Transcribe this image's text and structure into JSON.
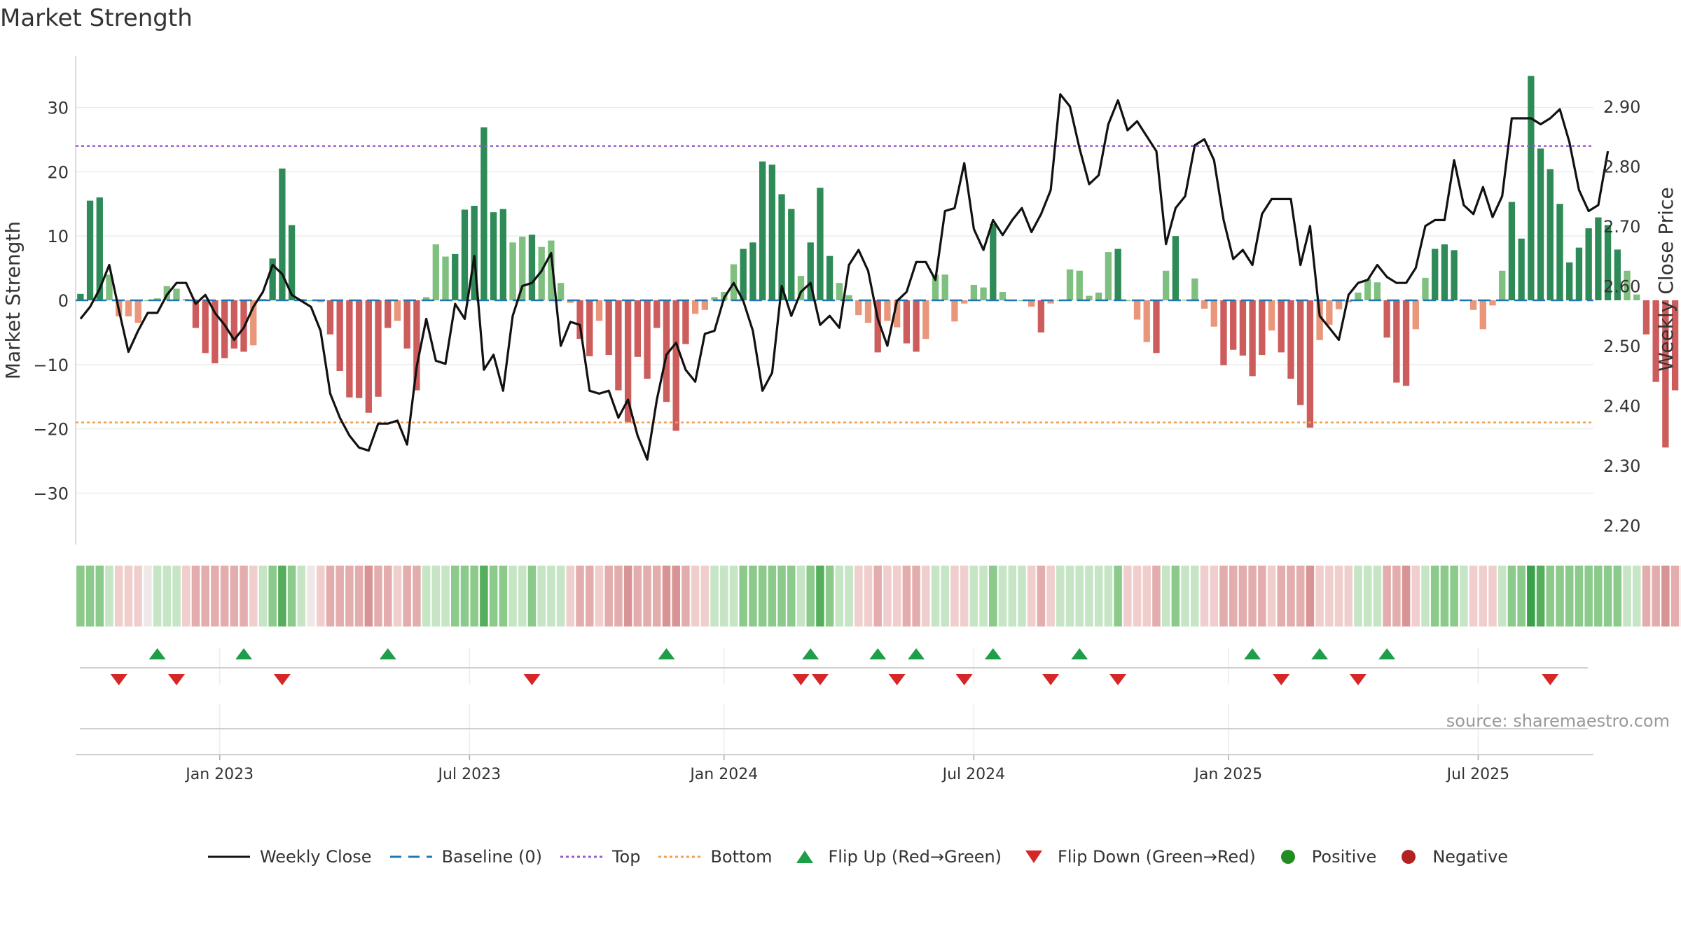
{
  "title": "Market Strength",
  "source": "source: sharemaestro.com",
  "colors": {
    "strong_green": "#2e8b57",
    "light_green": "#7fbf7f",
    "strong_red": "#cd5c5c",
    "light_red": "#e9967a",
    "price_line": "#111111",
    "baseline": "#1f77b4",
    "top": "#9b59d0",
    "bottom": "#f0a050",
    "flip_up": "#1e9e48",
    "flip_down": "#d62728",
    "positive": "#228b22",
    "negative": "#b22222"
  },
  "legend": {
    "weekly_close": "Weekly Close",
    "baseline": "Baseline (0)",
    "top": "Top",
    "bottom": "Bottom",
    "flip_up": "Flip Up (Red→Green)",
    "flip_down": "Flip Down (Green→Red)",
    "positive": "Positive",
    "negative": "Negative"
  },
  "chart_data": {
    "type": "bar",
    "title": "Market Strength",
    "ylabel": "Market Strength",
    "y2label": "Weekly Close Price",
    "ylim": [
      -38,
      38
    ],
    "y2lim": [
      2.168,
      2.984
    ],
    "yticks": [
      30,
      20,
      10,
      0,
      -10,
      -20,
      -30
    ],
    "ytick_labels": [
      "30",
      "20",
      "10",
      "0",
      "−10",
      "−20",
      "−30"
    ],
    "y2ticks": [
      2.9,
      2.8,
      2.7,
      2.6,
      2.5,
      2.4,
      2.3,
      2.2
    ],
    "y2tick_labels": [
      "2.90",
      "2.80",
      "2.70",
      "2.60",
      "2.50",
      "2.40",
      "2.30",
      "2.20"
    ],
    "xlim_weeks": [
      0,
      158
    ],
    "xticks": [
      {
        "label": "Jan 2023",
        "week": 15
      },
      {
        "label": "Jul 2023",
        "week": 41
      },
      {
        "label": "Jan 2024",
        "week": 67.5
      },
      {
        "label": "Jul 2024",
        "week": 93.5
      },
      {
        "label": "Jan 2025",
        "week": 120
      },
      {
        "label": "Jul 2025",
        "week": 146
      }
    ],
    "top_level": 24,
    "bottom_level": -19,
    "baseline": 0,
    "strength": [
      1,
      15.5,
      16,
      4,
      -2.5,
      -2.5,
      -3.5,
      0,
      0.3,
      2.2,
      1.8,
      0.2,
      -4.3,
      -8.2,
      -9.8,
      -9,
      -7.5,
      -8,
      -7,
      0.2,
      6.5,
      20.5,
      11.7,
      0.2,
      0,
      -0.3,
      -5.3,
      -11,
      -15.1,
      -15.2,
      -17.5,
      -15,
      -4.3,
      -3.2,
      -7.5,
      -14,
      0.5,
      8.7,
      6.8,
      7.2,
      14.1,
      14.7,
      26.9,
      13.7,
      14.2,
      9,
      9.9,
      10.2,
      8.3,
      9.3,
      2.7,
      -0.4,
      -6,
      -8.7,
      -3.2,
      -8.5,
      -14,
      -19,
      -8.8,
      -12.2,
      -4.3,
      -15.8,
      -20.3,
      -6.8,
      -2.1,
      -1.5,
      0.5,
      1.3,
      5.6,
      8,
      9,
      21.6,
      21.1,
      16.5,
      14.2,
      3.8,
      9,
      17.5,
      6.9,
      2.7,
      0.8,
      -2.3,
      -3.5,
      -8.1,
      -3.2,
      -4.2,
      -6.7,
      -8,
      -6,
      4,
      4,
      -3.3,
      -0.5,
      2.4,
      2,
      11.9,
      1.3,
      0,
      0,
      -1,
      -5,
      -0.5,
      0,
      4.8,
      4.6,
      0.7,
      1.2,
      7.5,
      8,
      0,
      -3,
      -6.5,
      -8.2,
      4.6,
      10,
      0.1,
      3.4,
      -1.3,
      -4.1,
      -10.1,
      -7.7,
      -8.6,
      -11.8,
      -8.5,
      -4.7,
      -8.1,
      -12.2,
      -16.3,
      -19.8,
      -6.2,
      -3.8,
      -1.4,
      -0.3,
      1.2,
      3.3,
      2.8,
      -5.8,
      -12.8,
      -13.3,
      -4.5,
      3.5,
      8,
      8.7,
      7.8,
      0,
      -1.5,
      -4.5,
      -0.8,
      4.6,
      15.3,
      9.6,
      34.9,
      23.6,
      20.4,
      15,
      5.9,
      8.2,
      11.2,
      12.9,
      11.7,
      7.9,
      4.6,
      0.9,
      -5.3,
      -12.7,
      -22.9,
      -14,
      -0.6
    ],
    "intensity": [
      2,
      2,
      2,
      1,
      -1,
      -1,
      -1,
      0,
      1,
      1,
      1,
      -1,
      -2,
      -2,
      -2,
      -2,
      -2,
      -2,
      -1,
      1,
      2,
      3,
      2,
      1,
      0,
      -1,
      -2,
      -2,
      -2,
      -2,
      -3,
      -2,
      -2,
      -1,
      -2,
      -2,
      1,
      1,
      1,
      2,
      2,
      2,
      3,
      2,
      2,
      1,
      1,
      2,
      1,
      1,
      1,
      -1,
      -2,
      -2,
      -1,
      -2,
      -2,
      -3,
      -2,
      -2,
      -2,
      -3,
      -3,
      -2,
      -1,
      -1,
      1,
      1,
      1,
      2,
      2,
      2,
      2,
      2,
      2,
      1,
      2,
      3,
      2,
      1,
      1,
      -1,
      -1,
      -2,
      -1,
      -1,
      -2,
      -2,
      -1,
      1,
      1,
      -1,
      -1,
      1,
      1,
      2,
      1,
      1,
      1,
      -1,
      -2,
      -1,
      1,
      1,
      1,
      1,
      1,
      1,
      2,
      -1,
      -1,
      -1,
      -2,
      1,
      2,
      1,
      1,
      -1,
      -1,
      -2,
      -2,
      -2,
      -2,
      -2,
      -1,
      -2,
      -2,
      -2,
      -3,
      -1,
      -1,
      -1,
      -1,
      1,
      1,
      1,
      -2,
      -2,
      -3,
      -1,
      1,
      2,
      2,
      2,
      1,
      -1,
      -1,
      -1,
      1,
      2,
      2,
      4,
      3,
      2,
      2,
      2,
      2,
      2,
      2,
      2,
      2,
      1,
      1,
      -2,
      -2,
      -3,
      -2,
      -1
    ],
    "price": [
      2.545,
      2.565,
      2.595,
      2.635,
      2.56,
      2.49,
      2.525,
      2.555,
      2.555,
      2.585,
      2.605,
      2.605,
      2.57,
      2.585,
      2.555,
      2.535,
      2.51,
      2.53,
      2.565,
      2.59,
      2.635,
      2.62,
      2.585,
      2.575,
      2.565,
      2.525,
      2.42,
      2.38,
      2.35,
      2.33,
      2.325,
      2.37,
      2.37,
      2.375,
      2.335,
      2.465,
      2.545,
      2.475,
      2.47,
      2.57,
      2.545,
      2.65,
      2.46,
      2.485,
      2.425,
      2.55,
      2.6,
      2.605,
      2.625,
      2.655,
      2.5,
      2.54,
      2.535,
      2.425,
      2.42,
      2.425,
      2.38,
      2.41,
      2.35,
      2.31,
      2.41,
      2.485,
      2.505,
      2.46,
      2.44,
      2.52,
      2.525,
      2.58,
      2.605,
      2.575,
      2.525,
      2.425,
      2.455,
      2.6,
      2.55,
      2.59,
      2.605,
      2.535,
      2.55,
      2.53,
      2.635,
      2.66,
      2.625,
      2.545,
      2.5,
      2.575,
      2.59,
      2.64,
      2.64,
      2.61,
      2.725,
      2.73,
      2.805,
      2.695,
      2.66,
      2.71,
      2.685,
      2.71,
      2.73,
      2.69,
      2.72,
      2.76,
      2.92,
      2.9,
      2.83,
      2.77,
      2.785,
      2.87,
      2.91,
      2.86,
      2.875,
      2.85,
      2.825,
      2.67,
      2.73,
      2.75,
      2.835,
      2.845,
      2.81,
      2.71,
      2.645,
      2.66,
      2.635,
      2.72,
      2.745,
      2.745,
      2.745,
      2.635,
      2.7,
      2.55,
      2.53,
      2.51,
      2.585,
      2.605,
      2.61,
      2.635,
      2.615,
      2.605,
      2.605,
      2.63,
      2.7,
      2.71,
      2.71,
      2.81,
      2.735,
      2.72,
      2.765,
      2.715,
      2.75,
      2.88,
      2.88,
      2.88,
      2.87,
      2.88,
      2.895,
      2.84,
      2.76,
      2.725,
      2.735,
      2.825
    ],
    "flips": {
      "up_weeks": [
        8,
        17,
        32,
        61,
        76,
        83,
        87,
        95,
        104,
        122,
        129,
        136
      ],
      "down_weeks": [
        4,
        10,
        21,
        47,
        75,
        77,
        85,
        92,
        101,
        108,
        125,
        133,
        153
      ]
    }
  }
}
